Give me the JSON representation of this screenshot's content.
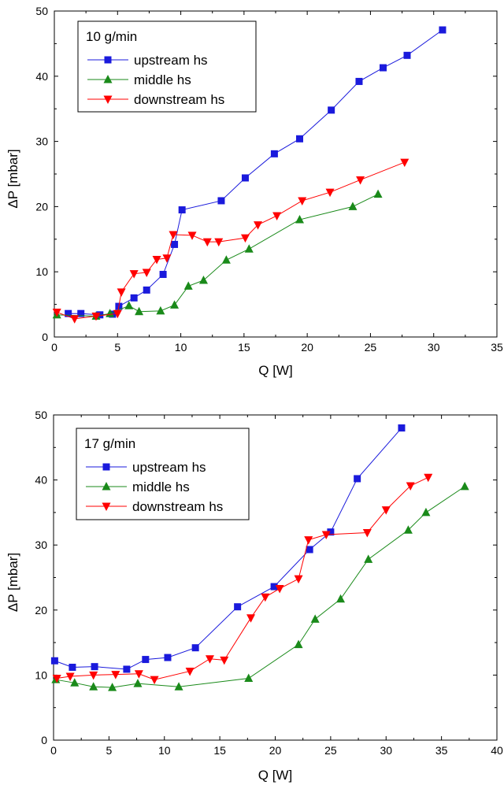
{
  "chart_data": [
    {
      "type": "line",
      "xlabel": "Q [W]",
      "ylabel": "ΔP [mbar]",
      "xlim": [
        0,
        35
      ],
      "ylim": [
        0,
        50
      ],
      "xticks": [
        0,
        5,
        10,
        15,
        20,
        25,
        30,
        35
      ],
      "yticks": [
        0,
        10,
        20,
        30,
        40,
        50
      ],
      "grid": false,
      "legend_position": "top-left",
      "legend_title": "10 g/min",
      "series": [
        {
          "name": "upstream hs",
          "color": "#1a1adc",
          "marker": "square",
          "x": [
            1.1,
            2.1,
            3.6,
            4.6,
            5.1,
            6.3,
            7.3,
            8.6,
            9.5,
            10.1,
            13.2,
            15.1,
            17.4,
            19.4,
            21.9,
            24.1,
            26.0,
            27.9,
            30.7
          ],
          "y": [
            3.6,
            3.6,
            3.4,
            3.5,
            4.7,
            6.0,
            7.2,
            9.6,
            14.2,
            19.5,
            20.9,
            24.4,
            28.1,
            30.4,
            34.8,
            39.2,
            41.3,
            43.2,
            47.1
          ]
        },
        {
          "name": "middle hs",
          "color": "#1a8a1a",
          "marker": "triangle-up",
          "x": [
            0.2,
            3.3,
            4.4,
            5.9,
            6.7,
            8.4,
            9.5,
            10.6,
            11.8,
            13.6,
            15.4,
            19.4,
            23.6,
            25.6
          ],
          "y": [
            3.4,
            3.2,
            3.6,
            4.8,
            3.9,
            4.0,
            4.9,
            7.8,
            8.7,
            11.8,
            13.5,
            18.0,
            20.0,
            21.9
          ]
        },
        {
          "name": "downstream hs",
          "color": "#ff0000",
          "marker": "triangle-down",
          "x": [
            0.2,
            1.6,
            3.3,
            5.0,
            5.3,
            6.3,
            7.3,
            8.1,
            8.9,
            9.4,
            10.9,
            12.1,
            13.0,
            15.1,
            16.1,
            17.6,
            19.6,
            21.8,
            24.2,
            27.7
          ],
          "y": [
            3.8,
            2.8,
            3.2,
            3.6,
            6.9,
            9.7,
            9.9,
            11.9,
            12.1,
            15.7,
            15.6,
            14.6,
            14.6,
            15.2,
            17.2,
            18.6,
            20.9,
            22.2,
            24.1,
            26.8
          ]
        }
      ]
    },
    {
      "type": "line",
      "xlabel": "Q [W]",
      "ylabel": "ΔP [mbar]",
      "xlim": [
        0,
        40
      ],
      "ylim": [
        0,
        50
      ],
      "xticks": [
        0,
        5,
        10,
        15,
        20,
        25,
        30,
        35,
        40
      ],
      "yticks": [
        0,
        10,
        20,
        30,
        40,
        50
      ],
      "grid": false,
      "legend_position": "top-left",
      "legend_title": "17 g/min",
      "series": [
        {
          "name": "upstream hs",
          "color": "#1a1adc",
          "marker": "square",
          "x": [
            0.1,
            1.7,
            3.7,
            6.6,
            8.3,
            10.3,
            12.8,
            16.6,
            19.9,
            23.1,
            25.0,
            27.4,
            31.4
          ],
          "y": [
            12.2,
            11.2,
            11.3,
            10.9,
            12.4,
            12.7,
            14.2,
            20.5,
            23.6,
            29.3,
            32.0,
            40.2,
            48.0
          ]
        },
        {
          "name": "middle hs",
          "color": "#1a8a1a",
          "marker": "triangle-up",
          "x": [
            0.2,
            1.9,
            3.6,
            5.3,
            7.6,
            11.3,
            17.6,
            22.1,
            23.6,
            25.9,
            28.4,
            32.0,
            33.6,
            37.1
          ],
          "y": [
            9.3,
            8.8,
            8.2,
            8.1,
            8.7,
            8.2,
            9.5,
            14.7,
            18.6,
            21.7,
            27.8,
            32.3,
            35.0,
            39.0
          ]
        },
        {
          "name": "downstream hs",
          "color": "#ff0000",
          "marker": "triangle-down",
          "x": [
            0.3,
            1.5,
            3.6,
            5.6,
            7.7,
            9.1,
            12.3,
            14.1,
            15.4,
            17.8,
            19.1,
            20.4,
            22.1,
            23.0,
            24.6,
            28.3,
            30.0,
            32.2,
            33.8
          ],
          "y": [
            9.5,
            9.8,
            10.0,
            10.1,
            10.2,
            9.3,
            10.6,
            12.5,
            12.3,
            18.8,
            22.0,
            23.3,
            24.8,
            30.8,
            31.6,
            31.9,
            35.4,
            39.1,
            40.4
          ]
        }
      ]
    }
  ]
}
